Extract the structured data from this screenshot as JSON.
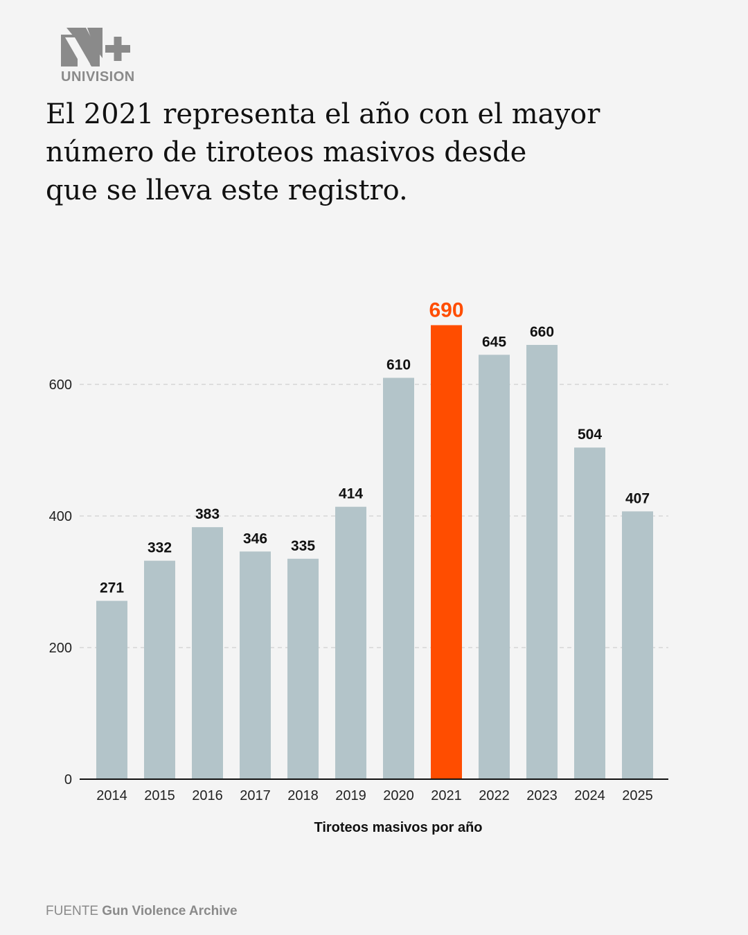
{
  "logo": {
    "text": "UNIVISION",
    "color": "#8a8a8a"
  },
  "title_lines": [
    "El 2021 representa el año con el mayor",
    "número de tiroteos masivos desde",
    "que se lleva este registro."
  ],
  "chart_data": {
    "type": "bar",
    "categories": [
      "2014",
      "2015",
      "2016",
      "2017",
      "2018",
      "2019",
      "2020",
      "2021",
      "2022",
      "2023",
      "2024",
      "2025"
    ],
    "values": [
      271,
      332,
      383,
      346,
      335,
      414,
      610,
      690,
      645,
      660,
      504,
      407
    ],
    "highlight": {
      "category": "2021",
      "color": "#ff4d00"
    },
    "bar_color": "#b3c4c9",
    "xlabel": "Tiroteos masivos por año",
    "ylabel": "",
    "ylim": [
      0,
      700
    ],
    "yticks": [
      0,
      200,
      400,
      600
    ],
    "grid": true,
    "grid_style": "dashed"
  },
  "source": {
    "prefix": "FUENTE",
    "name": "Gun Violence Archive"
  }
}
